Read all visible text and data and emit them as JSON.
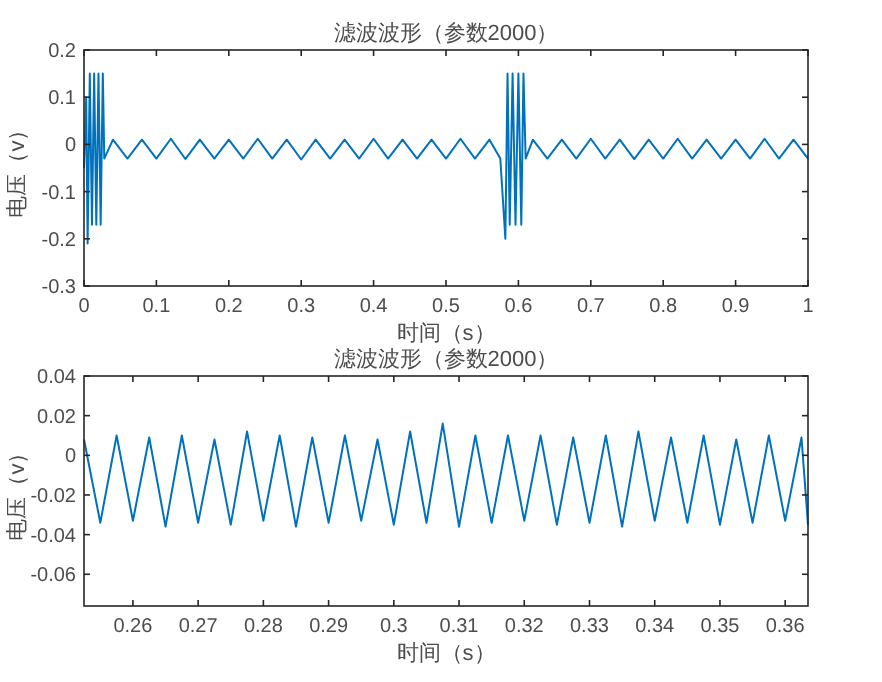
{
  "chart_data": [
    {
      "type": "line",
      "title": "滤波波形（参数2000）",
      "xlabel": "时间（s）",
      "ylabel": "电压（v）",
      "xlim": [
        0,
        1
      ],
      "ylim": [
        -0.3,
        0.2
      ],
      "xticks": [
        0,
        0.1,
        0.2,
        0.3,
        0.4,
        0.5,
        0.6,
        0.7,
        0.8,
        0.9,
        1
      ],
      "yticks": [
        -0.3,
        -0.2,
        -0.1,
        0,
        0.1,
        0.2
      ],
      "grid": false,
      "line_style": "solid",
      "x": [
        0,
        0.003,
        0.005,
        0.008,
        0.011,
        0.014,
        0.017,
        0.02,
        0.023,
        0.026,
        0.028,
        0.04,
        0.06,
        0.08,
        0.1,
        0.12,
        0.14,
        0.16,
        0.18,
        0.2,
        0.22,
        0.24,
        0.26,
        0.28,
        0.3,
        0.32,
        0.34,
        0.36,
        0.38,
        0.4,
        0.42,
        0.44,
        0.46,
        0.48,
        0.5,
        0.52,
        0.54,
        0.56,
        0.575,
        0.582,
        0.585,
        0.588,
        0.592,
        0.596,
        0.6,
        0.604,
        0.607,
        0.61,
        0.62,
        0.64,
        0.66,
        0.68,
        0.7,
        0.72,
        0.74,
        0.76,
        0.78,
        0.8,
        0.82,
        0.84,
        0.86,
        0.88,
        0.9,
        0.92,
        0.94,
        0.96,
        0.98,
        1
      ],
      "series": [
        {
          "color": "#0072bd",
          "values": [
            -0.05,
            0.1,
            -0.21,
            0.15,
            -0.17,
            0.15,
            -0.17,
            0.15,
            -0.17,
            0.15,
            -0.03,
            0.01,
            -0.03,
            0.01,
            -0.03,
            0.012,
            -0.031,
            0.01,
            -0.03,
            0.01,
            -0.03,
            0.012,
            -0.03,
            0.01,
            -0.032,
            0.01,
            -0.03,
            0.01,
            -0.03,
            0.012,
            -0.03,
            0.01,
            -0.03,
            0.01,
            -0.03,
            0.012,
            -0.03,
            0.01,
            -0.03,
            -0.2,
            0.15,
            -0.17,
            0.15,
            -0.17,
            0.15,
            -0.17,
            0.15,
            -0.03,
            0.01,
            -0.03,
            0.01,
            -0.03,
            0.012,
            -0.03,
            0.01,
            -0.031,
            0.01,
            -0.03,
            0.012,
            -0.03,
            0.01,
            -0.03,
            0.01,
            -0.03,
            0.012,
            -0.03,
            0.01,
            -0.03
          ]
        }
      ]
    },
    {
      "type": "line",
      "title": "滤波波形（参数2000）",
      "xlabel": "时间（s）",
      "ylabel": "电压（v）",
      "xlim": [
        0.2525,
        0.3635
      ],
      "ylim": [
        -0.076,
        0.04
      ],
      "xticks": [
        0.26,
        0.27,
        0.28,
        0.29,
        0.3,
        0.31,
        0.32,
        0.33,
        0.34,
        0.35,
        0.36
      ],
      "yticks": [
        -0.06,
        -0.04,
        -0.02,
        0,
        0.02,
        0.04
      ],
      "grid": false,
      "line_style": "solid",
      "x": [
        0.2525,
        0.255,
        0.2575,
        0.26,
        0.2625,
        0.265,
        0.2675,
        0.27,
        0.2725,
        0.275,
        0.2775,
        0.28,
        0.2825,
        0.285,
        0.2875,
        0.29,
        0.2925,
        0.295,
        0.2975,
        0.3,
        0.3025,
        0.305,
        0.3075,
        0.31,
        0.3125,
        0.315,
        0.3175,
        0.32,
        0.3225,
        0.325,
        0.3275,
        0.33,
        0.3325,
        0.335,
        0.3375,
        0.34,
        0.3425,
        0.345,
        0.3475,
        0.35,
        0.3525,
        0.355,
        0.3575,
        0.36,
        0.3625,
        0.3635
      ],
      "series": [
        {
          "color": "#0072bd",
          "values": [
            0.008,
            -0.034,
            0.01,
            -0.033,
            0.009,
            -0.036,
            0.01,
            -0.034,
            0.008,
            -0.035,
            0.012,
            -0.033,
            0.01,
            -0.036,
            0.009,
            -0.034,
            0.01,
            -0.033,
            0.008,
            -0.035,
            0.012,
            -0.034,
            0.016,
            -0.036,
            0.01,
            -0.034,
            0.01,
            -0.033,
            0.01,
            -0.035,
            0.009,
            -0.034,
            0.01,
            -0.036,
            0.012,
            -0.033,
            0.009,
            -0.034,
            0.01,
            -0.035,
            0.008,
            -0.034,
            0.01,
            -0.033,
            0.009,
            -0.035
          ]
        }
      ]
    }
  ]
}
